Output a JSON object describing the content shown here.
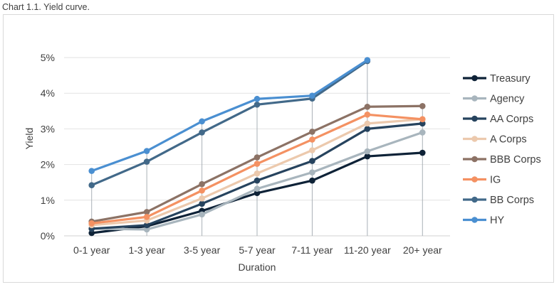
{
  "caption": "Chart 1.1. Yield curve.",
  "chart_data": {
    "type": "line",
    "title": "",
    "xlabel": "Duration",
    "ylabel": "Yield",
    "categories": [
      "0-1 year",
      "1-3 year",
      "3-5 year",
      "5-7 year",
      "7-11 year",
      "11-20 year",
      "20+ year"
    ],
    "ylim": [
      0,
      5
    ],
    "yticks": [
      0,
      1,
      2,
      3,
      4,
      5
    ],
    "ytick_labels": [
      "0%",
      "1%",
      "2%",
      "3%",
      "4%",
      "5%"
    ],
    "grid": "horizontal",
    "legend": "right",
    "series": [
      {
        "name": "Treasury",
        "color": "#0e2237",
        "values": [
          0.08,
          0.27,
          0.7,
          1.2,
          1.55,
          2.23,
          2.33
        ]
      },
      {
        "name": "Agency",
        "color": "#a8b5bd",
        "values": [
          0.2,
          0.18,
          0.6,
          1.32,
          1.78,
          2.37,
          2.9
        ]
      },
      {
        "name": "AA Corps",
        "color": "#26435e",
        "values": [
          0.2,
          0.3,
          0.9,
          1.55,
          2.1,
          3.0,
          3.15
        ]
      },
      {
        "name": "A Corps",
        "color": "#ecc9ad",
        "values": [
          0.3,
          0.43,
          1.05,
          1.75,
          2.4,
          3.15,
          3.27
        ]
      },
      {
        "name": "BBB Corps",
        "color": "#8c7265",
        "values": [
          0.4,
          0.67,
          1.45,
          2.2,
          2.92,
          3.62,
          3.64
        ]
      },
      {
        "name": "IG",
        "color": "#f49162",
        "values": [
          0.35,
          0.53,
          1.27,
          2.02,
          2.7,
          3.4,
          3.27
        ]
      },
      {
        "name": "BB Corps",
        "color": "#426989",
        "values": [
          1.42,
          2.08,
          2.9,
          3.68,
          3.85,
          4.9,
          null
        ]
      },
      {
        "name": "HY",
        "color": "#4a8fd1",
        "values": [
          1.82,
          2.38,
          3.21,
          3.84,
          3.93,
          4.93,
          null
        ]
      }
    ]
  }
}
